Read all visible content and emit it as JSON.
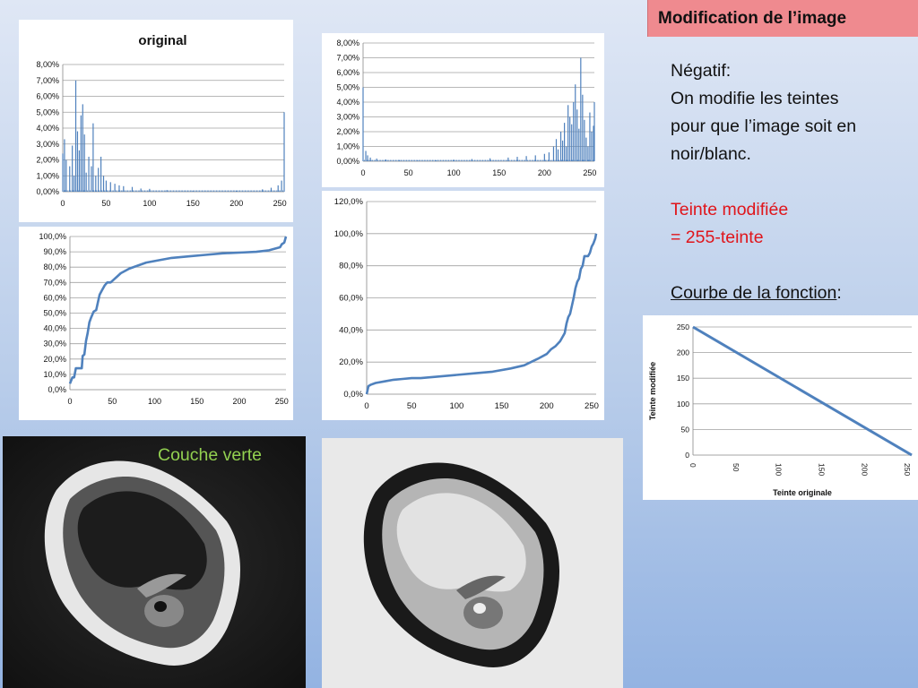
{
  "slide": {
    "title": "Modification de l’image",
    "text": {
      "line1": "Négatif:",
      "line2": "On modifie les teintes",
      "line3": "pour que l’image soit en",
      "line4": "noir/blanc.",
      "red1": "Teinte modifiée",
      "red2": "= 255-teinte",
      "courbe_underlined": "Courbe de la fonction",
      "courbe_suffix": ":"
    },
    "photo_label": "Couche verte"
  },
  "colors": {
    "series": "#4f81bd",
    "title_box": "#ef8a8f",
    "red_text": "#e0151b",
    "green_label": "#92d050"
  },
  "chart_data": [
    {
      "id": "hist-original",
      "type": "bar",
      "title": "original",
      "x_ticks": [
        "0",
        "50",
        "100",
        "150",
        "200",
        "250"
      ],
      "y_ticks": [
        "0,00%",
        "1,00%",
        "2,00%",
        "3,00%",
        "4,00%",
        "5,00%",
        "6,00%",
        "7,00%",
        "8,00%"
      ],
      "xlim": [
        0,
        255
      ],
      "ylim": [
        0,
        8
      ],
      "grid": true,
      "spikes": [
        [
          0,
          2.4
        ],
        [
          2,
          3.3
        ],
        [
          4,
          2.0
        ],
        [
          8,
          1.6
        ],
        [
          11,
          2.9
        ],
        [
          13,
          1.0
        ],
        [
          15,
          7.0
        ],
        [
          17,
          3.8
        ],
        [
          19,
          2.6
        ],
        [
          21,
          4.8
        ],
        [
          23,
          5.5
        ],
        [
          25,
          3.6
        ],
        [
          27,
          1.2
        ],
        [
          30,
          2.2
        ],
        [
          33,
          1.6
        ],
        [
          35,
          4.3
        ],
        [
          38,
          1.0
        ],
        [
          41,
          1.5
        ],
        [
          44,
          2.2
        ],
        [
          47,
          1.0
        ],
        [
          50,
          0.7
        ],
        [
          55,
          0.6
        ],
        [
          60,
          0.5
        ],
        [
          65,
          0.4
        ],
        [
          70,
          0.35
        ],
        [
          80,
          0.3
        ],
        [
          90,
          0.2
        ],
        [
          100,
          0.18
        ],
        [
          120,
          0.1
        ],
        [
          150,
          0.05
        ],
        [
          200,
          0.06
        ],
        [
          230,
          0.15
        ],
        [
          240,
          0.25
        ],
        [
          248,
          0.4
        ],
        [
          252,
          0.7
        ],
        [
          255,
          5.0
        ]
      ]
    },
    {
      "id": "cdf-original",
      "type": "line",
      "x_ticks": [
        "0",
        "50",
        "100",
        "150",
        "200",
        "250"
      ],
      "y_ticks": [
        "0,0%",
        "10,0%",
        "20,0%",
        "30,0%",
        "40,0%",
        "50,0%",
        "60,0%",
        "70,0%",
        "80,0%",
        "90,0%",
        "100,0%"
      ],
      "xlim": [
        0,
        255
      ],
      "ylim": [
        0,
        100
      ],
      "grid": true,
      "points": [
        [
          0,
          4
        ],
        [
          3,
          8
        ],
        [
          5,
          8
        ],
        [
          7,
          14
        ],
        [
          14,
          14
        ],
        [
          15,
          22
        ],
        [
          17,
          23
        ],
        [
          19,
          32
        ],
        [
          21,
          37
        ],
        [
          23,
          44
        ],
        [
          25,
          47
        ],
        [
          28,
          51
        ],
        [
          31,
          52
        ],
        [
          33,
          57
        ],
        [
          35,
          62
        ],
        [
          38,
          65
        ],
        [
          41,
          68
        ],
        [
          44,
          70
        ],
        [
          48,
          70
        ],
        [
          52,
          72
        ],
        [
          56,
          74
        ],
        [
          60,
          76
        ],
        [
          70,
          79
        ],
        [
          80,
          81
        ],
        [
          90,
          83
        ],
        [
          100,
          84
        ],
        [
          120,
          86
        ],
        [
          140,
          87
        ],
        [
          160,
          88
        ],
        [
          180,
          89
        ],
        [
          200,
          89.5
        ],
        [
          220,
          90
        ],
        [
          235,
          91
        ],
        [
          248,
          93
        ],
        [
          250,
          95
        ],
        [
          253,
          96
        ],
        [
          255,
          100
        ]
      ]
    },
    {
      "id": "hist-negatif",
      "type": "bar",
      "x_ticks": [
        "0",
        "50",
        "100",
        "150",
        "200",
        "250"
      ],
      "y_ticks": [
        "0,00%",
        "1,00%",
        "2,00%",
        "3,00%",
        "4,00%",
        "5,00%",
        "6,00%",
        "7,00%",
        "8,00%"
      ],
      "xlim": [
        0,
        255
      ],
      "ylim": [
        0,
        8
      ],
      "grid": true,
      "spikes": [
        [
          0,
          5.0
        ],
        [
          3,
          0.7
        ],
        [
          5,
          0.4
        ],
        [
          8,
          0.25
        ],
        [
          15,
          0.18
        ],
        [
          25,
          0.12
        ],
        [
          40,
          0.08
        ],
        [
          60,
          0.05
        ],
        [
          80,
          0.06
        ],
        [
          100,
          0.1
        ],
        [
          120,
          0.15
        ],
        [
          140,
          0.2
        ],
        [
          160,
          0.25
        ],
        [
          170,
          0.3
        ],
        [
          180,
          0.35
        ],
        [
          190,
          0.4
        ],
        [
          200,
          0.5
        ],
        [
          205,
          0.6
        ],
        [
          210,
          1.0
        ],
        [
          213,
          1.5
        ],
        [
          215,
          0.8
        ],
        [
          218,
          2.0
        ],
        [
          220,
          1.4
        ],
        [
          222,
          2.6
        ],
        [
          224,
          1.0
        ],
        [
          226,
          3.8
        ],
        [
          228,
          3.0
        ],
        [
          230,
          2.5
        ],
        [
          232,
          4.0
        ],
        [
          234,
          5.2
        ],
        [
          236,
          3.5
        ],
        [
          238,
          2.2
        ],
        [
          240,
          7.0
        ],
        [
          242,
          4.5
        ],
        [
          244,
          2.8
        ],
        [
          246,
          1.6
        ],
        [
          248,
          1.0
        ],
        [
          250,
          3.3
        ],
        [
          252,
          2.0
        ],
        [
          254,
          2.4
        ],
        [
          255,
          4.0
        ]
      ]
    },
    {
      "id": "cdf-negatif",
      "type": "line",
      "x_ticks": [
        "0",
        "50",
        "100",
        "150",
        "200",
        "250"
      ],
      "y_ticks": [
        "0,0%",
        "20,0%",
        "40,0%",
        "60,0%",
        "80,0%",
        "100,0%",
        "120,0%"
      ],
      "xlim": [
        0,
        255
      ],
      "ylim": [
        0,
        120
      ],
      "grid": true,
      "points": [
        [
          0,
          0
        ],
        [
          2,
          5
        ],
        [
          5,
          6
        ],
        [
          10,
          7
        ],
        [
          20,
          8
        ],
        [
          30,
          9
        ],
        [
          40,
          9.5
        ],
        [
          50,
          10
        ],
        [
          60,
          10
        ],
        [
          80,
          11
        ],
        [
          100,
          12
        ],
        [
          120,
          13
        ],
        [
          140,
          14
        ],
        [
          160,
          16
        ],
        [
          175,
          18
        ],
        [
          190,
          22
        ],
        [
          200,
          25
        ],
        [
          205,
          28
        ],
        [
          210,
          30
        ],
        [
          215,
          33
        ],
        [
          220,
          38
        ],
        [
          222,
          44
        ],
        [
          224,
          48
        ],
        [
          226,
          50
        ],
        [
          228,
          55
        ],
        [
          230,
          60
        ],
        [
          232,
          66
        ],
        [
          234,
          70
        ],
        [
          236,
          72
        ],
        [
          238,
          78
        ],
        [
          240,
          80
        ],
        [
          242,
          86
        ],
        [
          246,
          86
        ],
        [
          248,
          88
        ],
        [
          250,
          92
        ],
        [
          252,
          94
        ],
        [
          254,
          97
        ],
        [
          255,
          100
        ]
      ]
    },
    {
      "id": "function-curve",
      "type": "line",
      "xlabel": "Teinte originale",
      "ylabel": "Teinte modifiée",
      "x_ticks": [
        "0",
        "50",
        "100",
        "150",
        "200",
        "250"
      ],
      "y_ticks": [
        "0",
        "50",
        "100",
        "150",
        "200",
        "250"
      ],
      "xlim": [
        0,
        255
      ],
      "ylim": [
        0,
        255
      ],
      "grid": true,
      "points": [
        [
          0,
          255
        ],
        [
          255,
          0
        ]
      ]
    }
  ]
}
